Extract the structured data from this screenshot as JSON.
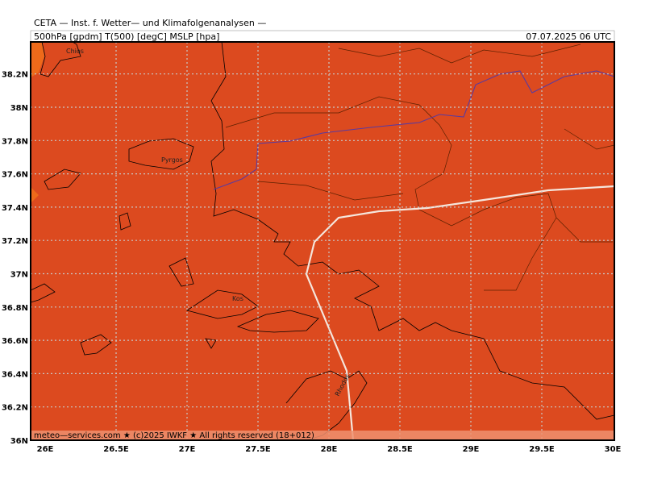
{
  "header": {
    "title": "CETA — Inst. f. Wetter— und Klimafolgenanalysen —",
    "fields": "500hPa [gpdm] T(500) [degC] MSLP [hpa]",
    "datetime": "07.07.2025 06 UTC"
  },
  "map": {
    "lon_labels": [
      "26E",
      "26.5E",
      "27E",
      "27.5E",
      "28E",
      "28.5E",
      "29E",
      "29.5E",
      "30E"
    ],
    "lat_labels": [
      "38.2N",
      "38N",
      "37.8N",
      "37.6N",
      "37.4N",
      "37.2N",
      "37N",
      "36.8N",
      "36.6N",
      "36.4N",
      "36.2N",
      "36N"
    ],
    "places": [
      "Chios",
      "Pyrgos",
      "Kos",
      "Rhodos"
    ]
  },
  "footer": "meteo—services.com ★ (c)2025 IWKF ★ All rights reserved (18+012)"
}
